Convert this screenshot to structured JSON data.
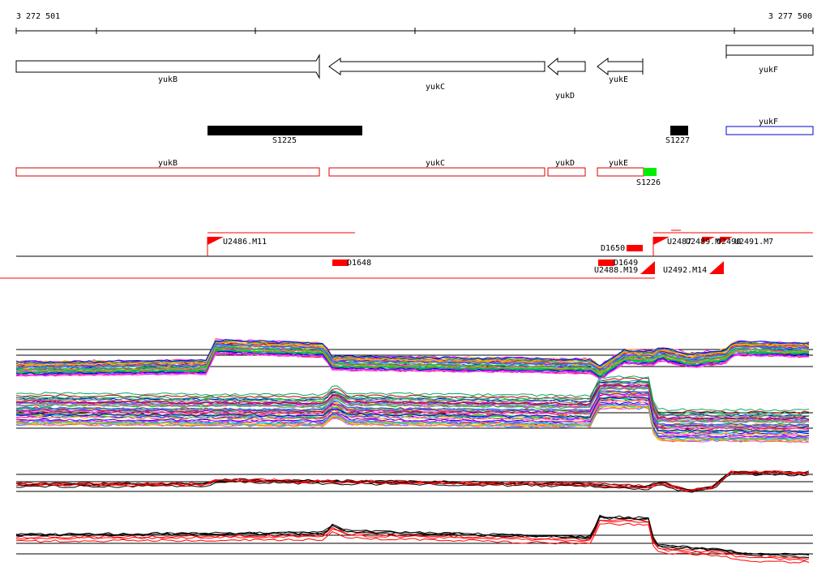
{
  "coordinates": {
    "start_label": "3 272 501",
    "end_label": "3 277 500"
  },
  "genes_top": [
    {
      "label": "yukB",
      "strand": "forward"
    },
    {
      "label": "yukC",
      "strand": "reverse"
    },
    {
      "label": "yukD",
      "strand": "reverse"
    },
    {
      "label": "yukE",
      "strand": "reverse"
    },
    {
      "label": "yukF",
      "strand": "forward"
    }
  ],
  "segments": [
    {
      "label": "S1225",
      "color": "#000000"
    },
    {
      "label": "S1227",
      "color": "#000000"
    },
    {
      "label": "S1226",
      "color": "#00ee00"
    }
  ],
  "gene_outline_yukF": {
    "label": "yukF",
    "color": "#0000cc"
  },
  "genes_red": [
    {
      "label": "yukB",
      "color": "#dd0000"
    },
    {
      "label": "yukC",
      "color": "#dd0000"
    },
    {
      "label": "yukD",
      "color": "#dd0000"
    },
    {
      "label": "yukE",
      "color": "#dd0000"
    }
  ],
  "features": [
    {
      "label": "U2486.M11"
    },
    {
      "label": "D1648"
    },
    {
      "label": "D1650"
    },
    {
      "label": "D1649"
    },
    {
      "label": "U2488.M19"
    },
    {
      "label": "U2487"
    },
    {
      "label": "U2489.M"
    },
    {
      "label": "U2490"
    },
    {
      "label": "U2491.M7"
    },
    {
      "label": "U2492.M14"
    }
  ],
  "colors": {
    "feature": "#ff0000",
    "axis": "#000000",
    "panel_ref": "#000000"
  },
  "palette": [
    "#ff00ff",
    "#00cc00",
    "#0000ff",
    "#ff8800",
    "#00cccc",
    "#cc0000",
    "#9900cc",
    "#888888",
    "#ffcc00",
    "#ff66cc",
    "#00aa66",
    "#3366ff"
  ]
}
